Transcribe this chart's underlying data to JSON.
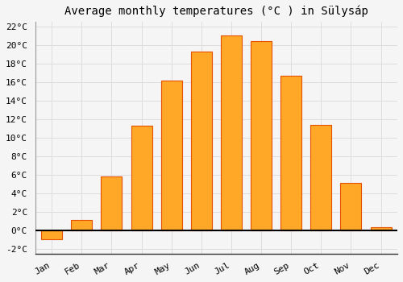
{
  "months": [
    "Jan",
    "Feb",
    "Mar",
    "Apr",
    "May",
    "Jun",
    "Jul",
    "Aug",
    "Sep",
    "Oct",
    "Nov",
    "Dec"
  ],
  "temperatures": [
    -1.0,
    1.1,
    5.8,
    11.3,
    16.1,
    19.3,
    21.0,
    20.4,
    16.7,
    11.4,
    5.1,
    0.3
  ],
  "bar_color": "#FFA726",
  "bar_edge_color": "#E65100",
  "title": "Average monthly temperatures (°C ) in Sülysáp",
  "ylim": [
    -2.5,
    22.5
  ],
  "yticks": [
    -2,
    0,
    2,
    4,
    6,
    8,
    10,
    12,
    14,
    16,
    18,
    20,
    22
  ],
  "background_color": "#f5f5f5",
  "plot_bg_color": "#f5f5f5",
  "grid_color": "#dddddd",
  "title_fontsize": 10,
  "tick_fontsize": 8,
  "bar_width": 0.7
}
